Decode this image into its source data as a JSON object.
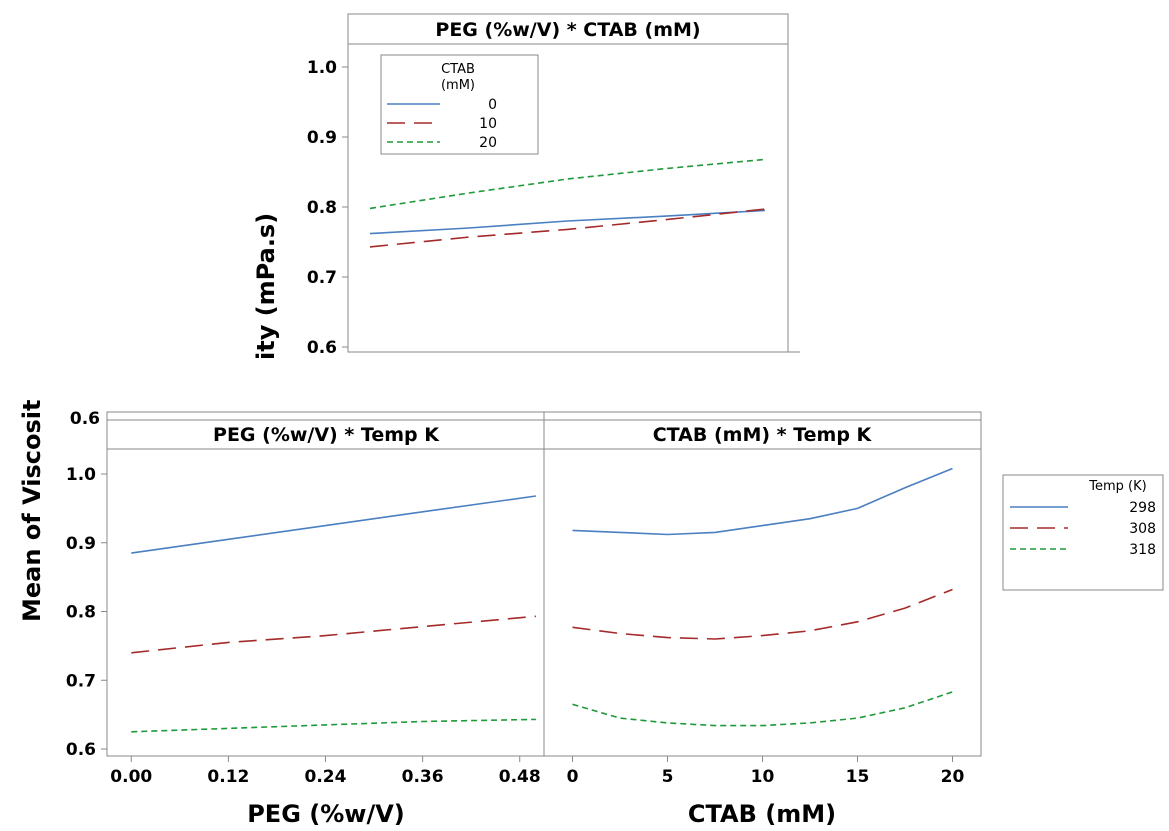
{
  "colors": {
    "s1": "#4a7fc1",
    "s2": "#a52a2a",
    "s3": "#1e9a3a"
  },
  "y_axis_title_top": "ity (mPa.s)",
  "y_axis_title_bottom": "Mean of Viscosit",
  "chart_data": [
    {
      "type": "line",
      "title": "PEG (%w/V) * CTAB (mM)",
      "ylim": [
        0.6,
        1.04
      ],
      "yticks": [
        "1.0",
        "0.9",
        "0.8",
        "0.7",
        "0.6"
      ],
      "xlim": [
        0,
        0.5
      ],
      "legend": {
        "title_line1": "CTAB",
        "title_line2": "(mM)",
        "placement": "top-left"
      },
      "series": [
        {
          "name": "0",
          "style": "solid",
          "color": "#4a7fc1",
          "x": [
            0,
            0.125,
            0.25,
            0.375,
            0.5
          ],
          "values": [
            0.762,
            0.77,
            0.78,
            0.787,
            0.795
          ]
        },
        {
          "name": "10",
          "style": "long-dash",
          "color": "#a52a2a",
          "x": [
            0,
            0.125,
            0.25,
            0.375,
            0.5
          ],
          "values": [
            0.743,
            0.757,
            0.768,
            0.782,
            0.797
          ]
        },
        {
          "name": "20",
          "style": "short-dash",
          "color": "#1e9a3a",
          "x": [
            0,
            0.125,
            0.25,
            0.375,
            0.5
          ],
          "values": [
            0.798,
            0.82,
            0.84,
            0.855,
            0.868
          ]
        }
      ]
    },
    {
      "type": "line",
      "title": "PEG (%w/V) * Temp K",
      "xlabel": "PEG (%w/V)",
      "ylim": [
        0.6,
        1.04
      ],
      "yticks": [
        "1.0",
        "0.9",
        "0.8",
        "0.7",
        "0.6"
      ],
      "xlim": [
        -0.03,
        0.51
      ],
      "xticks": [
        "0.00",
        "0.12",
        "0.24",
        "0.36",
        "0.48"
      ],
      "series": [
        {
          "name": "298",
          "style": "solid",
          "color": "#4a7fc1",
          "x": [
            0,
            0.12,
            0.24,
            0.36,
            0.5
          ],
          "values": [
            0.885,
            0.905,
            0.925,
            0.945,
            0.968
          ]
        },
        {
          "name": "308",
          "style": "long-dash",
          "color": "#a52a2a",
          "x": [
            0,
            0.12,
            0.24,
            0.36,
            0.5
          ],
          "values": [
            0.74,
            0.755,
            0.765,
            0.778,
            0.793
          ]
        },
        {
          "name": "318",
          "style": "short-dash",
          "color": "#1e9a3a",
          "x": [
            0,
            0.12,
            0.24,
            0.36,
            0.5
          ],
          "values": [
            0.625,
            0.63,
            0.635,
            0.64,
            0.643
          ]
        }
      ]
    },
    {
      "type": "line",
      "title": "CTAB (mM) * Temp K",
      "xlabel": "CTAB (mM)",
      "ylim": [
        0.6,
        1.04
      ],
      "xlim": [
        -1.5,
        21.5
      ],
      "xticks": [
        "0",
        "5",
        "10",
        "15",
        "20"
      ],
      "series": [
        {
          "name": "298",
          "style": "solid",
          "color": "#4a7fc1",
          "x": [
            0,
            2.5,
            5,
            7.5,
            10,
            12.5,
            15,
            17.5,
            20
          ],
          "values": [
            0.918,
            0.915,
            0.912,
            0.915,
            0.925,
            0.935,
            0.95,
            0.98,
            1.008
          ]
        },
        {
          "name": "308",
          "style": "long-dash",
          "color": "#a52a2a",
          "x": [
            0,
            2.5,
            5,
            7.5,
            10,
            12.5,
            15,
            17.5,
            20
          ],
          "values": [
            0.777,
            0.768,
            0.762,
            0.76,
            0.765,
            0.772,
            0.785,
            0.805,
            0.832
          ]
        },
        {
          "name": "318",
          "style": "short-dash",
          "color": "#1e9a3a",
          "x": [
            0,
            2.5,
            5,
            7.5,
            10,
            12.5,
            15,
            17.5,
            20
          ],
          "values": [
            0.665,
            0.645,
            0.638,
            0.634,
            0.634,
            0.638,
            0.645,
            0.66,
            0.683
          ]
        }
      ]
    }
  ],
  "legend_temp": {
    "title": "Temp (K)",
    "placement": "right",
    "entries": [
      {
        "label": "298",
        "style": "solid",
        "color": "#4a7fc1"
      },
      {
        "label": "308",
        "style": "long-dash",
        "color": "#a52a2a"
      },
      {
        "label": "318",
        "style": "short-dash",
        "color": "#1e9a3a"
      }
    ]
  }
}
